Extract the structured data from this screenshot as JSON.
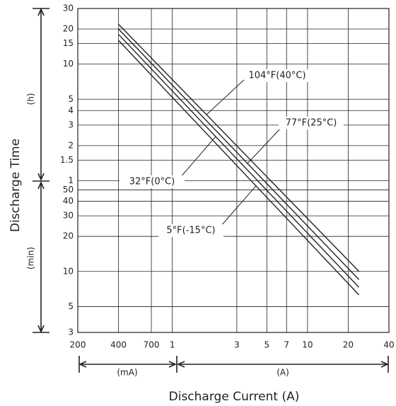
{
  "chart_data": {
    "type": "line",
    "x_label": "Discharge Current (A)",
    "y_label": "Discharge Time",
    "y_unit_upper": "(h)",
    "y_unit_lower": "(min)",
    "x_unit_left": "(mA)",
    "x_unit_right": "(A)",
    "log_x": true,
    "log_y": true,
    "grid": true,
    "xlim": [
      0.2,
      40
    ],
    "ylim": [
      0.05,
      30
    ],
    "xticks": [
      {
        "value": 0.2,
        "label": "200"
      },
      {
        "value": 0.4,
        "label": "400"
      },
      {
        "value": 0.7,
        "label": "700"
      },
      1,
      3,
      5,
      7,
      10,
      20,
      40
    ],
    "yticks": [
      30,
      20,
      15,
      10,
      5,
      4,
      3,
      2,
      1.5,
      1,
      {
        "value": 0.8333,
        "label": "50"
      },
      {
        "value": 0.6667,
        "label": "40"
      },
      {
        "value": 0.5,
        "label": "30"
      },
      {
        "value": 0.3333,
        "label": "20"
      },
      {
        "value": 0.1667,
        "label": "10"
      },
      {
        "value": 0.0833,
        "label": "5"
      },
      {
        "value": 0.05,
        "label": "3"
      }
    ],
    "x": [
      0.4,
      24
    ],
    "series": [
      {
        "name": "104°F(40°C)",
        "color": "#222222",
        "values": [
          22,
          0.167
        ]
      },
      {
        "name": "77°F(25°C)",
        "color": "#222222",
        "values": [
          20,
          0.142
        ]
      },
      {
        "name": "32°F(0°C)",
        "color": "#222222",
        "values": [
          18,
          0.122
        ]
      },
      {
        "name": "5°F(-15°C)",
        "color": "#222222",
        "values": [
          16,
          0.105
        ]
      }
    ]
  }
}
